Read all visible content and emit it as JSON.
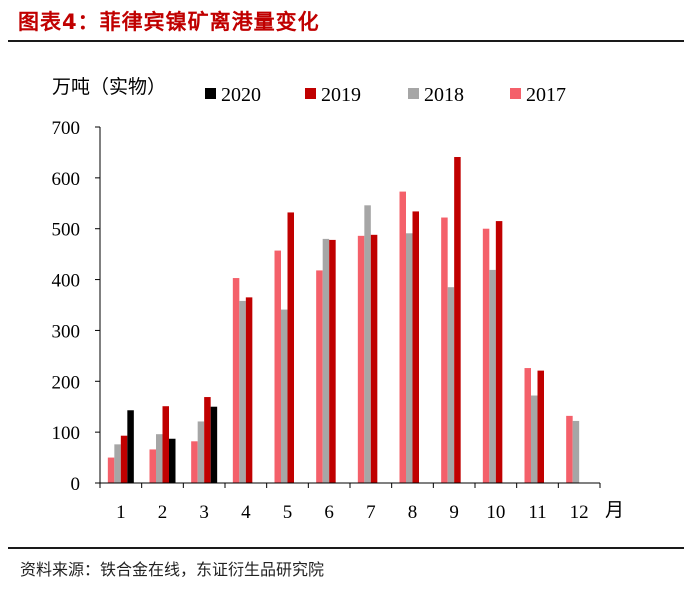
{
  "figure": {
    "title": "图表4：菲律宾镍矿离港量变化",
    "source": "资料来源：铁合金在线，东证衍生品研究院"
  },
  "chart_data": {
    "type": "bar",
    "ylabel": "万吨（实物）",
    "xlabel": "月",
    "ylim": [
      0,
      700
    ],
    "yticks": [
      0,
      100,
      200,
      300,
      400,
      500,
      600,
      700
    ],
    "categories": [
      "1",
      "2",
      "3",
      "4",
      "5",
      "6",
      "7",
      "8",
      "9",
      "10",
      "11",
      "12"
    ],
    "legend_position": "top",
    "grid": false,
    "series": [
      {
        "name": "2017",
        "color": "#f4606a",
        "values": [
          50,
          66,
          82,
          403,
          457,
          418,
          486,
          573,
          522,
          500,
          226,
          132
        ]
      },
      {
        "name": "2018",
        "color": "#a6a6a6",
        "values": [
          76,
          96,
          121,
          358,
          341,
          480,
          546,
          491,
          385,
          419,
          172,
          122
        ]
      },
      {
        "name": "2019",
        "color": "#c00000",
        "values": [
          93,
          151,
          169,
          365,
          532,
          478,
          488,
          534,
          641,
          515,
          221,
          null
        ]
      },
      {
        "name": "2020",
        "color": "#000000",
        "values": [
          143,
          87,
          150,
          null,
          null,
          null,
          null,
          null,
          null,
          null,
          null,
          null
        ]
      }
    ],
    "legend_order": [
      "2020",
      "2019",
      "2018",
      "2017"
    ]
  }
}
